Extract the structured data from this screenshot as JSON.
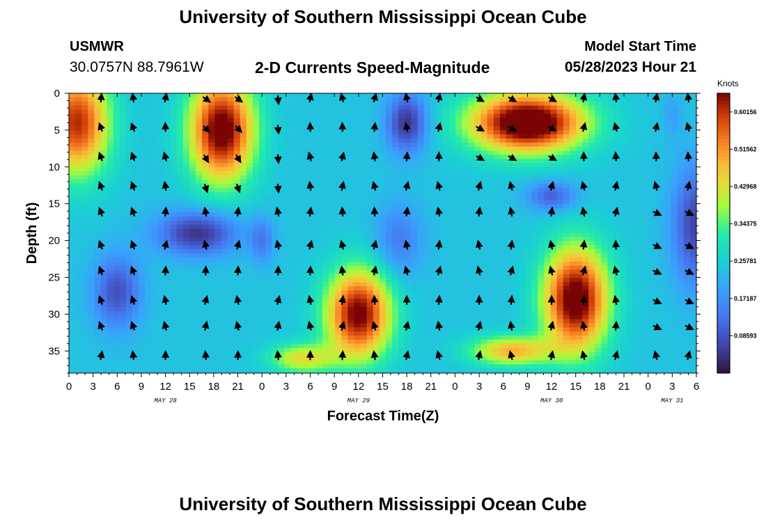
{
  "page": {
    "title": "University of Southern Mississippi Ocean Cube",
    "title_repeat": "University of Southern Mississippi Ocean Cube",
    "station": "USMWR",
    "coordinates": "30.0757N  88.7961W",
    "subtitle": "2-D Currents Speed-Magnitude",
    "model_start_label": "Model Start Time",
    "model_start_value": "05/28/2023 Hour 21"
  },
  "chart_data": {
    "type": "heatmap",
    "title": "2-D Currents Speed-Magnitude",
    "xlabel": "Forecast Time(Z)",
    "ylabel": "Depth (ft)",
    "x_range": [
      0,
      78
    ],
    "y_range": [
      0,
      38
    ],
    "y_inverted": true,
    "x_ticks": [
      {
        "hours": 0,
        "label": "0"
      },
      {
        "hours": 3,
        "label": "3"
      },
      {
        "hours": 6,
        "label": "6"
      },
      {
        "hours": 9,
        "label": "9"
      },
      {
        "hours": 12,
        "label": "12"
      },
      {
        "hours": 15,
        "label": "15"
      },
      {
        "hours": 18,
        "label": "18"
      },
      {
        "hours": 21,
        "label": "21"
      },
      {
        "hours": 24,
        "label": "0"
      },
      {
        "hours": 27,
        "label": "3"
      },
      {
        "hours": 30,
        "label": "6"
      },
      {
        "hours": 33,
        "label": "9"
      },
      {
        "hours": 36,
        "label": "12"
      },
      {
        "hours": 39,
        "label": "15"
      },
      {
        "hours": 42,
        "label": "18"
      },
      {
        "hours": 45,
        "label": "21"
      },
      {
        "hours": 48,
        "label": "0"
      },
      {
        "hours": 51,
        "label": "3"
      },
      {
        "hours": 54,
        "label": "6"
      },
      {
        "hours": 57,
        "label": "9"
      },
      {
        "hours": 60,
        "label": "12"
      },
      {
        "hours": 63,
        "label": "15"
      },
      {
        "hours": 66,
        "label": "18"
      },
      {
        "hours": 69,
        "label": "21"
      },
      {
        "hours": 72,
        "label": "0"
      },
      {
        "hours": 75,
        "label": "3"
      },
      {
        "hours": 78,
        "label": "6"
      }
    ],
    "y_ticks": [
      0,
      5,
      10,
      15,
      20,
      25,
      30,
      35
    ],
    "day_labels": [
      {
        "hours": 12,
        "label": "MAY 28"
      },
      {
        "hours": 36,
        "label": "MAY 29"
      },
      {
        "hours": 60,
        "label": "MAY 30"
      },
      {
        "hours": 75,
        "label": "MAY 31"
      }
    ],
    "colorbar": {
      "unit": "Knots",
      "min": 0.0,
      "max": 0.6446,
      "tick_labels": [
        "0.08593",
        "0.17187",
        "0.25781",
        "0.34375",
        "0.42968",
        "0.51562",
        "0.60156"
      ],
      "tick_values": [
        0.08593,
        0.17187,
        0.25781,
        0.34375,
        0.42968,
        0.51562,
        0.60156
      ]
    },
    "speed_regions": [
      {
        "hours": 1,
        "depth": 4,
        "sx": 4,
        "sy": 7,
        "speed": 0.37
      },
      {
        "hours": 19,
        "depth": 5,
        "sx": 4,
        "sy": 7,
        "speed": 0.44
      },
      {
        "hours": 16,
        "depth": 19,
        "sx": 5,
        "sy": 3,
        "speed": -0.2
      },
      {
        "hours": 24,
        "depth": 20,
        "sx": 1.5,
        "sy": 3,
        "speed": -0.1
      },
      {
        "hours": 6,
        "depth": 27,
        "sx": 3,
        "sy": 5,
        "speed": -0.16
      },
      {
        "hours": 36,
        "depth": 30,
        "sx": 4,
        "sy": 6,
        "speed": 0.42
      },
      {
        "hours": 29,
        "depth": 36,
        "sx": 4,
        "sy": 2,
        "speed": 0.2
      },
      {
        "hours": 42,
        "depth": 4,
        "sx": 2.5,
        "sy": 4,
        "speed": -0.2
      },
      {
        "hours": 41,
        "depth": 20,
        "sx": 3,
        "sy": 5,
        "speed": -0.1
      },
      {
        "hours": 57,
        "depth": 4,
        "sx": 7,
        "sy": 4,
        "speed": 0.5
      },
      {
        "hours": 63,
        "depth": 28,
        "sx": 4,
        "sy": 7,
        "speed": 0.45
      },
      {
        "hours": 55,
        "depth": 35,
        "sx": 5,
        "sy": 2,
        "speed": 0.25
      },
      {
        "hours": 60,
        "depth": 14,
        "sx": 3,
        "sy": 2,
        "speed": -0.14
      },
      {
        "hours": 78,
        "depth": 18,
        "sx": 3,
        "sy": 8,
        "speed": -0.18
      },
      {
        "hours": 75,
        "depth": 3,
        "sx": 1.2,
        "sy": 3,
        "speed": -0.05
      }
    ],
    "arrow_grid": {
      "hours": [
        4,
        8,
        12,
        17,
        21,
        26,
        30,
        34,
        38,
        42,
        46,
        51,
        55,
        60,
        64,
        68,
        73,
        77
      ],
      "depths": [
        0,
        4,
        8,
        12,
        15.5,
        20,
        23.5,
        27.5,
        31,
        35
      ]
    }
  }
}
